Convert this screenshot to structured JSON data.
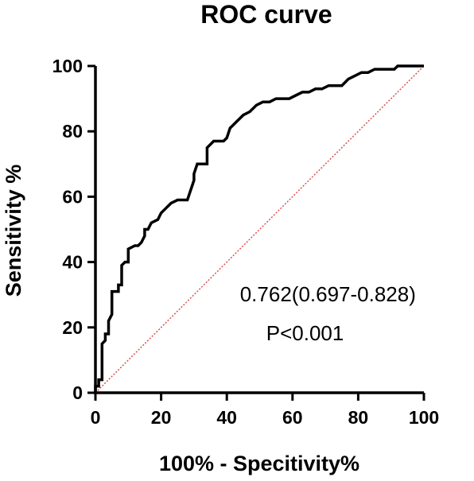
{
  "chart_data": {
    "type": "line",
    "title": "ROC curve",
    "xlabel": "100% - Specitivity%",
    "ylabel": "Sensitivity %",
    "xlim": [
      0,
      100
    ],
    "ylim": [
      0,
      100
    ],
    "xticks": [
      0,
      20,
      40,
      60,
      80,
      100
    ],
    "yticks": [
      0,
      20,
      40,
      60,
      80,
      100
    ],
    "grid": false,
    "series": [
      {
        "color": "#000000",
        "x": [
          0,
          0,
          1,
          1,
          2,
          2,
          3,
          3,
          4,
          4,
          5,
          5,
          6,
          7,
          7,
          8,
          8,
          9,
          10,
          10,
          12,
          13,
          14,
          15,
          15,
          16,
          17,
          17,
          19,
          20,
          21,
          23,
          25,
          27,
          28,
          30,
          30,
          31,
          32,
          33,
          34,
          34,
          36,
          37,
          39,
          40,
          41,
          42,
          43,
          45,
          47,
          49,
          51,
          53,
          55,
          57,
          59,
          61,
          63,
          65,
          67,
          69,
          71,
          73,
          75,
          76,
          77,
          79,
          81,
          83,
          85,
          87,
          89,
          91,
          92,
          94,
          96,
          98,
          100
        ],
        "y": [
          0,
          2,
          2,
          4,
          4,
          15,
          16,
          18,
          18,
          22,
          24,
          31,
          31,
          31,
          33,
          33,
          39,
          40,
          40,
          44,
          45,
          45,
          46,
          48,
          50,
          50,
          52,
          52,
          53,
          55,
          56,
          58,
          59,
          59,
          59,
          65,
          67,
          70,
          70,
          70,
          70,
          75,
          77,
          77,
          77,
          78,
          81,
          82,
          83,
          85,
          86,
          88,
          89,
          89,
          90,
          90,
          90,
          91,
          92,
          92,
          93,
          93,
          94,
          94,
          94,
          95,
          96,
          97,
          98,
          98,
          99,
          99,
          99,
          99,
          100,
          100,
          100,
          100,
          100
        ]
      },
      {
        "color": "#d9534f",
        "x": [
          0,
          100
        ],
        "y": [
          0,
          100
        ]
      }
    ],
    "annotations": [
      {
        "text": "0.762(0.697-0.828)",
        "x": 44,
        "y": 28
      },
      {
        "text": "P<0.001",
        "x": 52,
        "y": 16
      }
    ]
  }
}
